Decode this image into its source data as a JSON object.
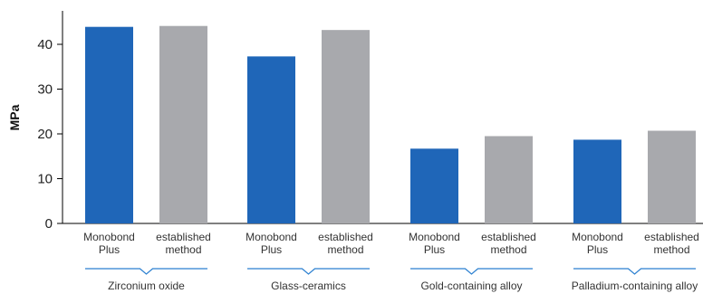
{
  "chart_data": {
    "type": "bar",
    "title": "",
    "ylabel": "MPa",
    "xlabel": "",
    "ylim": [
      0,
      50
    ],
    "yticks": [
      0,
      10,
      20,
      30,
      40
    ],
    "grid": false,
    "legend": "none",
    "colors": {
      "monobond": "#1f66b8",
      "established": "#a8a9ad",
      "bracket": "#2a7fd0",
      "axis": "#000000"
    },
    "groups": [
      {
        "name": "Zirconium oxide",
        "bars": [
          {
            "label": [
              "Monobond",
              "Plus"
            ],
            "value": 43.9,
            "series": "monobond"
          },
          {
            "label": [
              "established",
              "method"
            ],
            "value": 44.1,
            "series": "established"
          }
        ]
      },
      {
        "name": "Glass-ceramics",
        "bars": [
          {
            "label": [
              "Monobond",
              "Plus"
            ],
            "value": 37.3,
            "series": "monobond"
          },
          {
            "label": [
              "established",
              "method"
            ],
            "value": 43.2,
            "series": "established"
          }
        ]
      },
      {
        "name": "Gold-containing alloy",
        "bars": [
          {
            "label": [
              "Monobond",
              "Plus"
            ],
            "value": 16.7,
            "series": "monobond"
          },
          {
            "label": [
              "established",
              "method"
            ],
            "value": 19.5,
            "series": "established"
          }
        ]
      },
      {
        "name": "Palladium-containing alloy",
        "bars": [
          {
            "label": [
              "Monobond",
              "Plus"
            ],
            "value": 18.7,
            "series": "monobond"
          },
          {
            "label": [
              "established",
              "method"
            ],
            "value": 20.7,
            "series": "established"
          }
        ]
      }
    ]
  }
}
